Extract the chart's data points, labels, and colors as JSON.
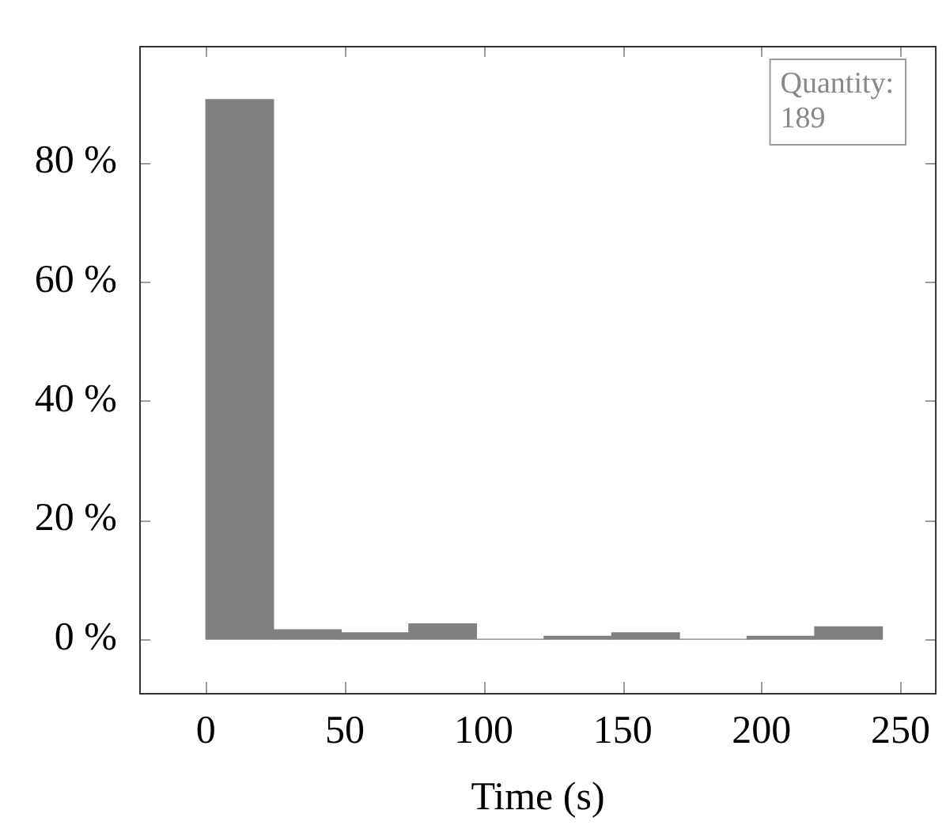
{
  "chart_data": {
    "type": "histogram",
    "xlabel": "Time (s)",
    "bins": [
      0,
      24.35,
      48.7,
      73.05,
      97.4,
      121.75,
      146.1,
      170.45,
      194.8,
      219.15,
      243.5
    ],
    "values": [
      90.5,
      1.6,
      1.1,
      2.6,
      0,
      0.5,
      1.1,
      0,
      0.5,
      2.1
    ],
    "color": "#808080",
    "xlim": [
      -24,
      263
    ],
    "xticks": [
      0,
      50,
      100,
      150,
      200,
      250
    ],
    "ylim": [
      -9,
      99.5
    ],
    "yticks": [
      {
        "value": 0,
        "label": "0 %"
      },
      {
        "value": 20,
        "label": "20 %"
      },
      {
        "value": 40,
        "label": "40 %"
      },
      {
        "value": 60,
        "label": "60 %"
      },
      {
        "value": 80,
        "label": "80 %"
      }
    ],
    "grid": false,
    "legend": false,
    "annotations": [
      "Quantity:\n189"
    ]
  }
}
